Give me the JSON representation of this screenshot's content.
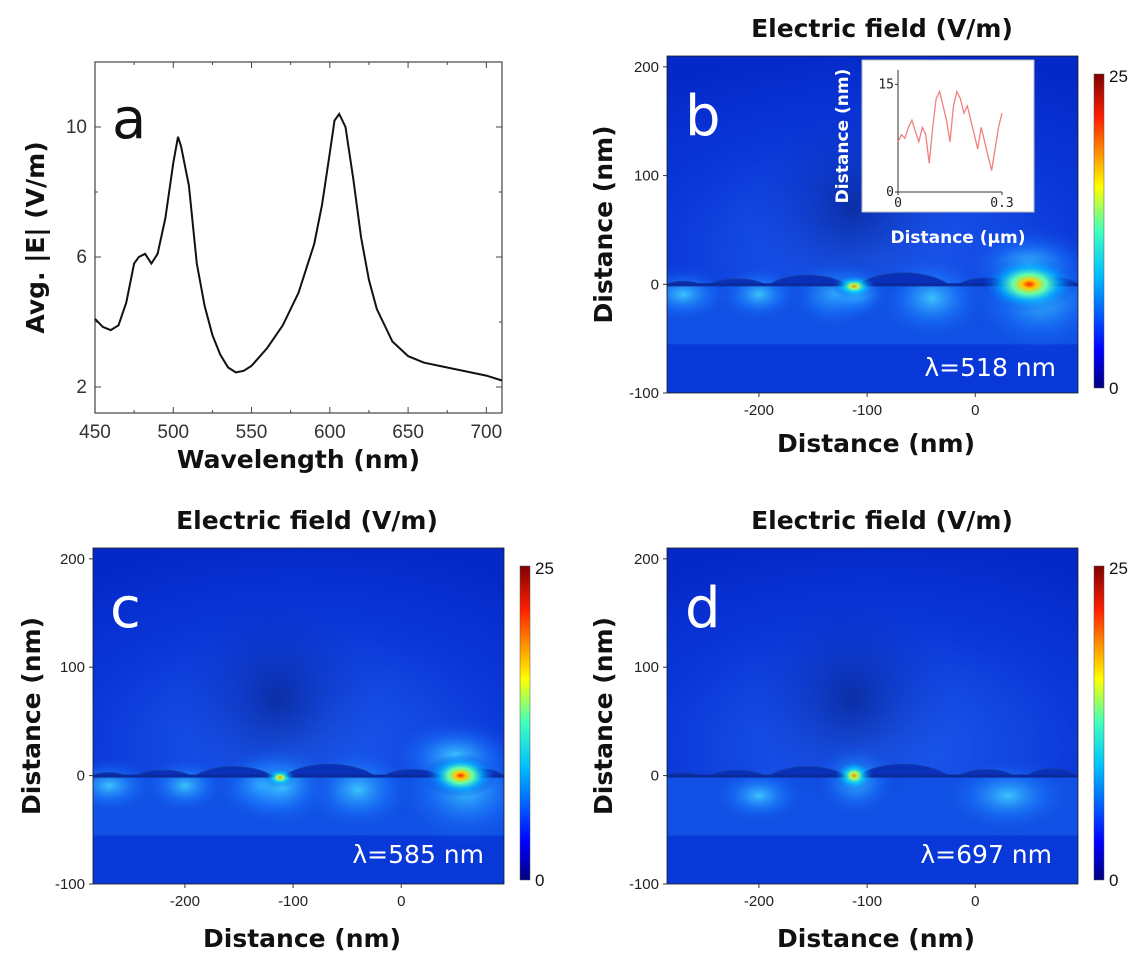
{
  "chart_data": [
    {
      "type": "line",
      "panel_label": "a",
      "xlabel": "Wavelength (nm)",
      "ylabel": "Avg. |E| (V/m)",
      "xlim": [
        450,
        710
      ],
      "ylim": [
        1.2,
        12
      ],
      "xticks": [
        "450",
        "500",
        "550",
        "600",
        "650",
        "700"
      ],
      "yticks": [
        "2",
        "6",
        "10"
      ],
      "grid": false,
      "x": [
        450,
        455,
        460,
        465,
        470,
        475,
        478,
        482,
        486,
        490,
        495,
        500,
        503,
        505,
        510,
        515,
        520,
        525,
        530,
        535,
        540,
        545,
        550,
        560,
        570,
        580,
        590,
        595,
        600,
        603,
        606,
        610,
        615,
        620,
        625,
        630,
        640,
        650,
        660,
        670,
        680,
        690,
        700,
        710
      ],
      "y": [
        4.1,
        3.85,
        3.75,
        3.9,
        4.6,
        5.8,
        6.0,
        6.1,
        5.8,
        6.1,
        7.2,
        8.9,
        9.7,
        9.4,
        8.2,
        5.8,
        4.5,
        3.6,
        3.0,
        2.6,
        2.45,
        2.5,
        2.65,
        3.2,
        3.9,
        4.9,
        6.4,
        7.6,
        9.2,
        10.2,
        10.4,
        10.0,
        8.4,
        6.6,
        5.3,
        4.4,
        3.4,
        2.95,
        2.75,
        2.65,
        2.55,
        2.45,
        2.35,
        2.2
      ]
    },
    {
      "type": "heatmap",
      "panel_label": "b",
      "title": "Electric field (V/m)",
      "xlabel": "Distance (nm)",
      "ylabel": "Distance (nm)",
      "xticks": [
        "-200",
        "-100",
        "0"
      ],
      "yticks": [
        "200",
        "100",
        "0",
        "-100"
      ],
      "colorbar": {
        "min": "0",
        "max": "25"
      },
      "wavelength_label": "λ=518 nm",
      "inset": {
        "type": "line",
        "xlabel": "Distance (μm)",
        "ylabel": "Distance (nm)",
        "xticks": [
          "0",
          "0.3"
        ],
        "yticks": [
          "15",
          "0"
        ],
        "xlim": [
          0,
          0.3
        ],
        "ylim": [
          0,
          17
        ],
        "color": "#f08080",
        "x": [
          0,
          0.01,
          0.02,
          0.03,
          0.04,
          0.05,
          0.06,
          0.07,
          0.08,
          0.09,
          0.1,
          0.11,
          0.12,
          0.13,
          0.14,
          0.15,
          0.16,
          0.17,
          0.18,
          0.19,
          0.2,
          0.21,
          0.22,
          0.23,
          0.24,
          0.25,
          0.26,
          0.27,
          0.28,
          0.29,
          0.3
        ],
        "y": [
          7,
          8,
          7.5,
          9,
          10,
          8.5,
          7,
          9,
          8,
          4,
          9,
          13,
          14,
          12,
          10,
          7,
          12,
          14,
          13,
          11,
          12,
          10,
          8,
          6,
          9,
          7,
          5,
          3,
          6,
          9,
          11
        ]
      }
    },
    {
      "type": "heatmap",
      "panel_label": "c",
      "title": "Electric field (V/m)",
      "xlabel": "Distance (nm)",
      "ylabel": "Distance (nm)",
      "xticks": [
        "-200",
        "-100",
        "0"
      ],
      "yticks": [
        "200",
        "100",
        "0",
        "-100"
      ],
      "colorbar": {
        "min": "0",
        "max": "25"
      },
      "wavelength_label": "λ=585 nm"
    },
    {
      "type": "heatmap",
      "panel_label": "d",
      "title": "Electric field (V/m)",
      "xlabel": "Distance (nm)",
      "ylabel": "Distance (nm)",
      "xticks": [
        "-200",
        "-100",
        "0"
      ],
      "yticks": [
        "200",
        "100",
        "0",
        "-100"
      ],
      "colorbar": {
        "min": "0",
        "max": "25"
      },
      "wavelength_label": "λ=697 nm"
    }
  ]
}
